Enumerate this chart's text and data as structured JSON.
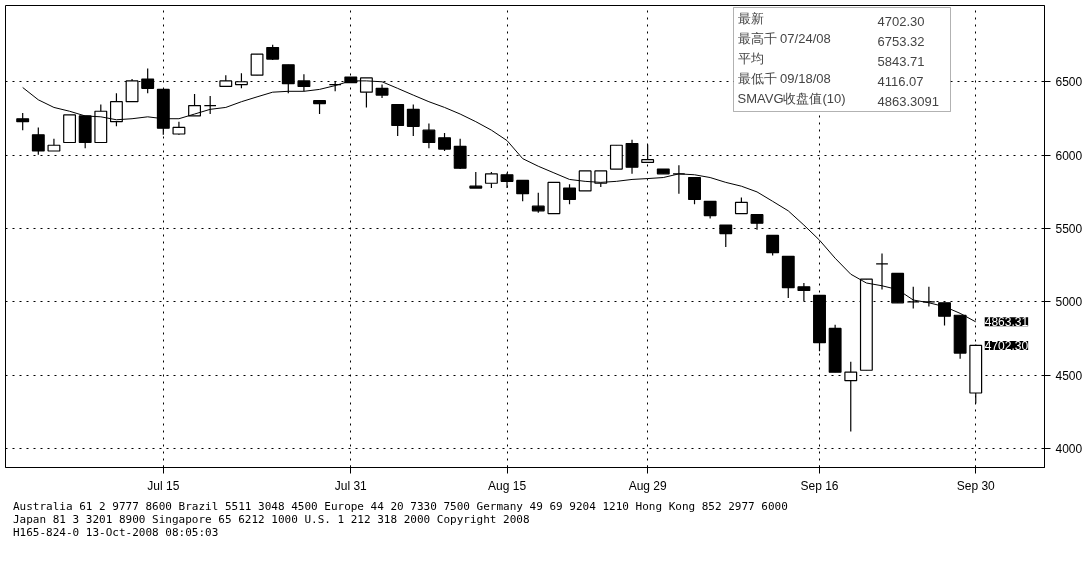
{
  "chart_data": {
    "type": "candlestick",
    "categories": [
      null,
      null,
      null,
      null,
      null,
      null,
      null,
      null,
      null,
      "Jul 15",
      null,
      null,
      null,
      null,
      null,
      null,
      null,
      null,
      null,
      null,
      null,
      "Jul 31",
      null,
      null,
      null,
      null,
      null,
      null,
      null,
      null,
      null,
      "Aug 15",
      null,
      null,
      null,
      null,
      null,
      null,
      null,
      null,
      "Aug 29",
      null,
      null,
      null,
      null,
      null,
      null,
      null,
      null,
      null,
      null,
      "Sep 16",
      null,
      null,
      null,
      null,
      null,
      null,
      null,
      null,
      null,
      "Sep 30"
    ],
    "ohlc": [
      [
        6248,
        6287,
        6170,
        6228
      ],
      [
        6138,
        6189,
        6002,
        6028
      ],
      [
        6028,
        6112,
        6028,
        6067
      ],
      [
        6086,
        6274,
        6086,
        6274
      ],
      [
        6267,
        6267,
        6047,
        6086
      ],
      [
        6086,
        6345,
        6086,
        6299
      ],
      [
        6228,
        6422,
        6196,
        6364
      ],
      [
        6364,
        6519,
        6364,
        6506
      ],
      [
        6519,
        6591,
        6422,
        6455
      ],
      [
        6448,
        6448,
        6138,
        6183
      ],
      [
        6144,
        6228,
        6138,
        6189
      ],
      [
        6267,
        6416,
        6267,
        6338
      ],
      [
        6338,
        6403,
        6280,
        6338
      ],
      [
        6468,
        6545,
        6468,
        6506
      ],
      [
        6481,
        6558,
        6455,
        6500
      ],
      [
        6545,
        6688,
        6545,
        6688
      ],
      [
        6733,
        6753,
        6649,
        6655
      ],
      [
        6616,
        6616,
        6422,
        6487
      ],
      [
        6506,
        6552,
        6435,
        6468
      ],
      [
        6371,
        6371,
        6280,
        6351
      ],
      [
        6481,
        6506,
        6435,
        6481
      ],
      [
        6532,
        6532,
        6494,
        6494
      ],
      [
        6429,
        6526,
        6325,
        6526
      ],
      [
        6455,
        6481,
        6390,
        6409
      ],
      [
        6345,
        6345,
        6131,
        6202
      ],
      [
        6312,
        6345,
        6131,
        6196
      ],
      [
        6170,
        6215,
        6047,
        6086
      ],
      [
        6118,
        6151,
        6028,
        6041
      ],
      [
        6060,
        6112,
        5905,
        5911
      ],
      [
        5788,
        5885,
        5775,
        5775
      ],
      [
        5808,
        5885,
        5775,
        5872
      ],
      [
        5866,
        5879,
        5775,
        5821
      ],
      [
        5827,
        5827,
        5685,
        5737
      ],
      [
        5652,
        5743,
        5607,
        5620
      ],
      [
        5601,
        5814,
        5601,
        5814
      ],
      [
        5775,
        5801,
        5665,
        5698
      ],
      [
        5756,
        5892,
        5756,
        5892
      ],
      [
        5808,
        5892,
        5782,
        5892
      ],
      [
        5905,
        6067,
        5905,
        6067
      ],
      [
        6079,
        6105,
        5872,
        5918
      ],
      [
        5950,
        6073,
        5950,
        5969
      ],
      [
        5905,
        5905,
        5872,
        5872
      ],
      [
        5872,
        5931,
        5737,
        5872
      ],
      [
        5847,
        5847,
        5665,
        5698
      ],
      [
        5685,
        5685,
        5568,
        5588
      ],
      [
        5523,
        5523,
        5374,
        5465
      ],
      [
        5601,
        5711,
        5601,
        5678
      ],
      [
        5594,
        5594,
        5491,
        5536
      ],
      [
        5452,
        5452,
        5316,
        5335
      ],
      [
        5310,
        5310,
        5025,
        5096
      ],
      [
        5102,
        5128,
        5005,
        5077
      ],
      [
        5044,
        5044,
        4662,
        4721
      ],
      [
        4818,
        4844,
        4520,
        4520
      ],
      [
        4462,
        4591,
        4116,
        4520
      ],
      [
        4533,
        5154,
        4533,
        5154
      ],
      [
        5258,
        5329,
        5083,
        5258
      ],
      [
        5193,
        5193,
        4993,
        4993
      ],
      [
        4999,
        5102,
        4954,
        4999
      ],
      [
        4999,
        5102,
        4967,
        4999
      ],
      [
        4993,
        4993,
        4838,
        4902
      ],
      [
        4908,
        4908,
        4611,
        4650
      ],
      [
        4378,
        4708,
        4307,
        4702
      ]
    ],
    "series": [
      {
        "type": "line",
        "color": "#000000",
        "values": [
          6461,
          6377,
          6325,
          6299,
          6267,
          6261,
          6241,
          6248,
          6261,
          6248,
          6248,
          6280,
          6312,
          6325,
          6364,
          6397,
          6429,
          6435,
          6435,
          6448,
          6474,
          6506,
          6506,
          6500,
          6455,
          6409,
          6364,
          6325,
          6280,
          6228,
          6170,
          6099,
          5976,
          5924,
          5879,
          5834,
          5821,
          5814,
          5821,
          5834,
          5840,
          5847,
          5872,
          5866,
          5847,
          5814,
          5788,
          5749,
          5685,
          5620,
          5523,
          5420,
          5297,
          5188,
          5128,
          5109,
          5083,
          5012,
          4993,
          4967,
          4921,
          4863
        ]
      }
    ],
    "ylim": [
      3870,
      7020
    ],
    "yticks": [
      4000,
      4500,
      5000,
      5500,
      6000,
      6500
    ],
    "grid": true,
    "annotations": [
      "最新 4702.30",
      "最高千 07/24/08 6753.32",
      "平均 5843.71",
      "最低千 09/18/08 4116.07",
      "SMAVG收盘值(10) 4863.3091",
      {
        "text": "4863.31",
        "x": "Sep 30",
        "y": 4863.31
      },
      {
        "text": "4702.30",
        "x": "Sep 30",
        "y": 4702.3
      },
      "Australia 61 2 9777 8600 Brazil 5511 3048 4500 Europe 44 20 7330 7500 Germany 49 69 9204 1210 Hong Kong 852 2977 6000",
      "Japan 81 3 3201 8900 Singapore 65 6212 1000 U.S. 1 212 318 2000 Copyright 2008",
      "H165-824-0 13-Oct-2008 08:05:03"
    ]
  }
}
